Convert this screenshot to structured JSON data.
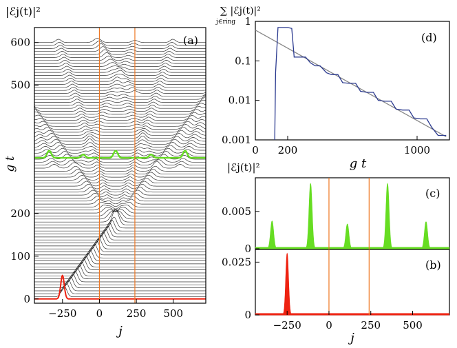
{
  "colors": {
    "green": "#66dd22",
    "red": "#ee2211",
    "vline": "#ee7722",
    "decay_curve": "#2b3a8f",
    "fit_line": "#888888",
    "trace": "#000000"
  },
  "chart_data": [
    {
      "id": "a",
      "type": "line",
      "panel_label": "(a)",
      "description_kind": "waterfall",
      "xlabel": "j",
      "ylabel": "g t",
      "top_label": "|ℰj(t)|²",
      "x_ticks": [
        -250,
        0,
        250,
        500
      ],
      "y_ticks": [
        0,
        100,
        200,
        500,
        600
      ],
      "xlim": [
        -440,
        720
      ],
      "ylim": [
        -10,
        635
      ],
      "vertical_lines": [
        0,
        240
      ],
      "series": [
        {
          "values": [
            {
              "gt": 0,
              "center_j": -250,
              "peak": 0.028
            }
          ],
          "color": "red"
        },
        {
          "values": [
            {
              "gt": 330,
              "peaks_j": [
                -340,
                -110,
                110,
                350,
                580
              ]
            }
          ],
          "color": "green"
        }
      ]
    },
    {
      "id": "d",
      "type": "line",
      "panel_label": "(d)",
      "xlabel": "g t",
      "ylabel": "∑ |ℰj(t)|²",
      "ylabel_sub": "j∈ring",
      "yscale": "log",
      "ylim": [
        0.001,
        1
      ],
      "xlim": [
        0,
        1200
      ],
      "x_ticks": [
        0,
        200,
        1000
      ],
      "y_ticks": [
        "0.001",
        "0.01",
        "0.1",
        "1"
      ],
      "series": [
        {
          "color": "decay",
          "values": [
            [
              120,
              0.001
            ],
            [
              125,
              0.05
            ],
            [
              140,
              0.7
            ],
            [
              200,
              0.7
            ],
            [
              225,
              0.66
            ],
            [
              240,
              0.125
            ],
            [
              310,
              0.125
            ],
            [
              340,
              0.09
            ],
            [
              370,
              0.075
            ],
            [
              400,
              0.075
            ],
            [
              440,
              0.05
            ],
            [
              470,
              0.045
            ],
            [
              510,
              0.045
            ],
            [
              540,
              0.028
            ],
            [
              580,
              0.027
            ],
            [
              620,
              0.027
            ],
            [
              650,
              0.017
            ],
            [
              690,
              0.016
            ],
            [
              730,
              0.016
            ],
            [
              760,
              0.01
            ],
            [
              800,
              0.0095
            ],
            [
              840,
              0.0095
            ],
            [
              870,
              0.006
            ],
            [
              910,
              0.0057
            ],
            [
              950,
              0.0057
            ],
            [
              980,
              0.0036
            ],
            [
              1020,
              0.0034
            ],
            [
              1060,
              0.0034
            ],
            [
              1090,
              0.0021
            ],
            [
              1130,
              0.0013
            ],
            [
              1180,
              0.0013
            ]
          ]
        },
        {
          "color": "fit",
          "values": [
            [
              0,
              0.6
            ],
            [
              1180,
              0.0012
            ]
          ]
        }
      ]
    },
    {
      "id": "c",
      "type": "area",
      "panel_label": "(c)",
      "top_label": "|ℰj(t)|²",
      "ylim": [
        0,
        0.0095
      ],
      "y_ticks": [
        "0",
        "0.005"
      ],
      "xlim": [
        -440,
        720
      ],
      "vertical_lines": [
        0,
        240
      ],
      "series": [
        {
          "color": "green",
          "values": [
            {
              "j": -340,
              "peak": 0.0037
            },
            {
              "j": -110,
              "peak": 0.0087
            },
            {
              "j": 110,
              "peak": 0.0033
            },
            {
              "j": 350,
              "peak": 0.0087
            },
            {
              "j": 580,
              "peak": 0.0036
            }
          ]
        }
      ]
    },
    {
      "id": "b",
      "type": "area",
      "panel_label": "(b)",
      "xlabel": "j",
      "ylim": [
        0,
        0.031
      ],
      "y_ticks": [
        "0",
        "0.025"
      ],
      "xlim": [
        -440,
        720
      ],
      "x_ticks": [
        -250,
        0,
        250,
        500
      ],
      "vertical_lines": [
        0,
        240
      ],
      "series": [
        {
          "color": "red",
          "values": [
            {
              "j": -250,
              "peak": 0.029
            }
          ]
        }
      ]
    }
  ]
}
